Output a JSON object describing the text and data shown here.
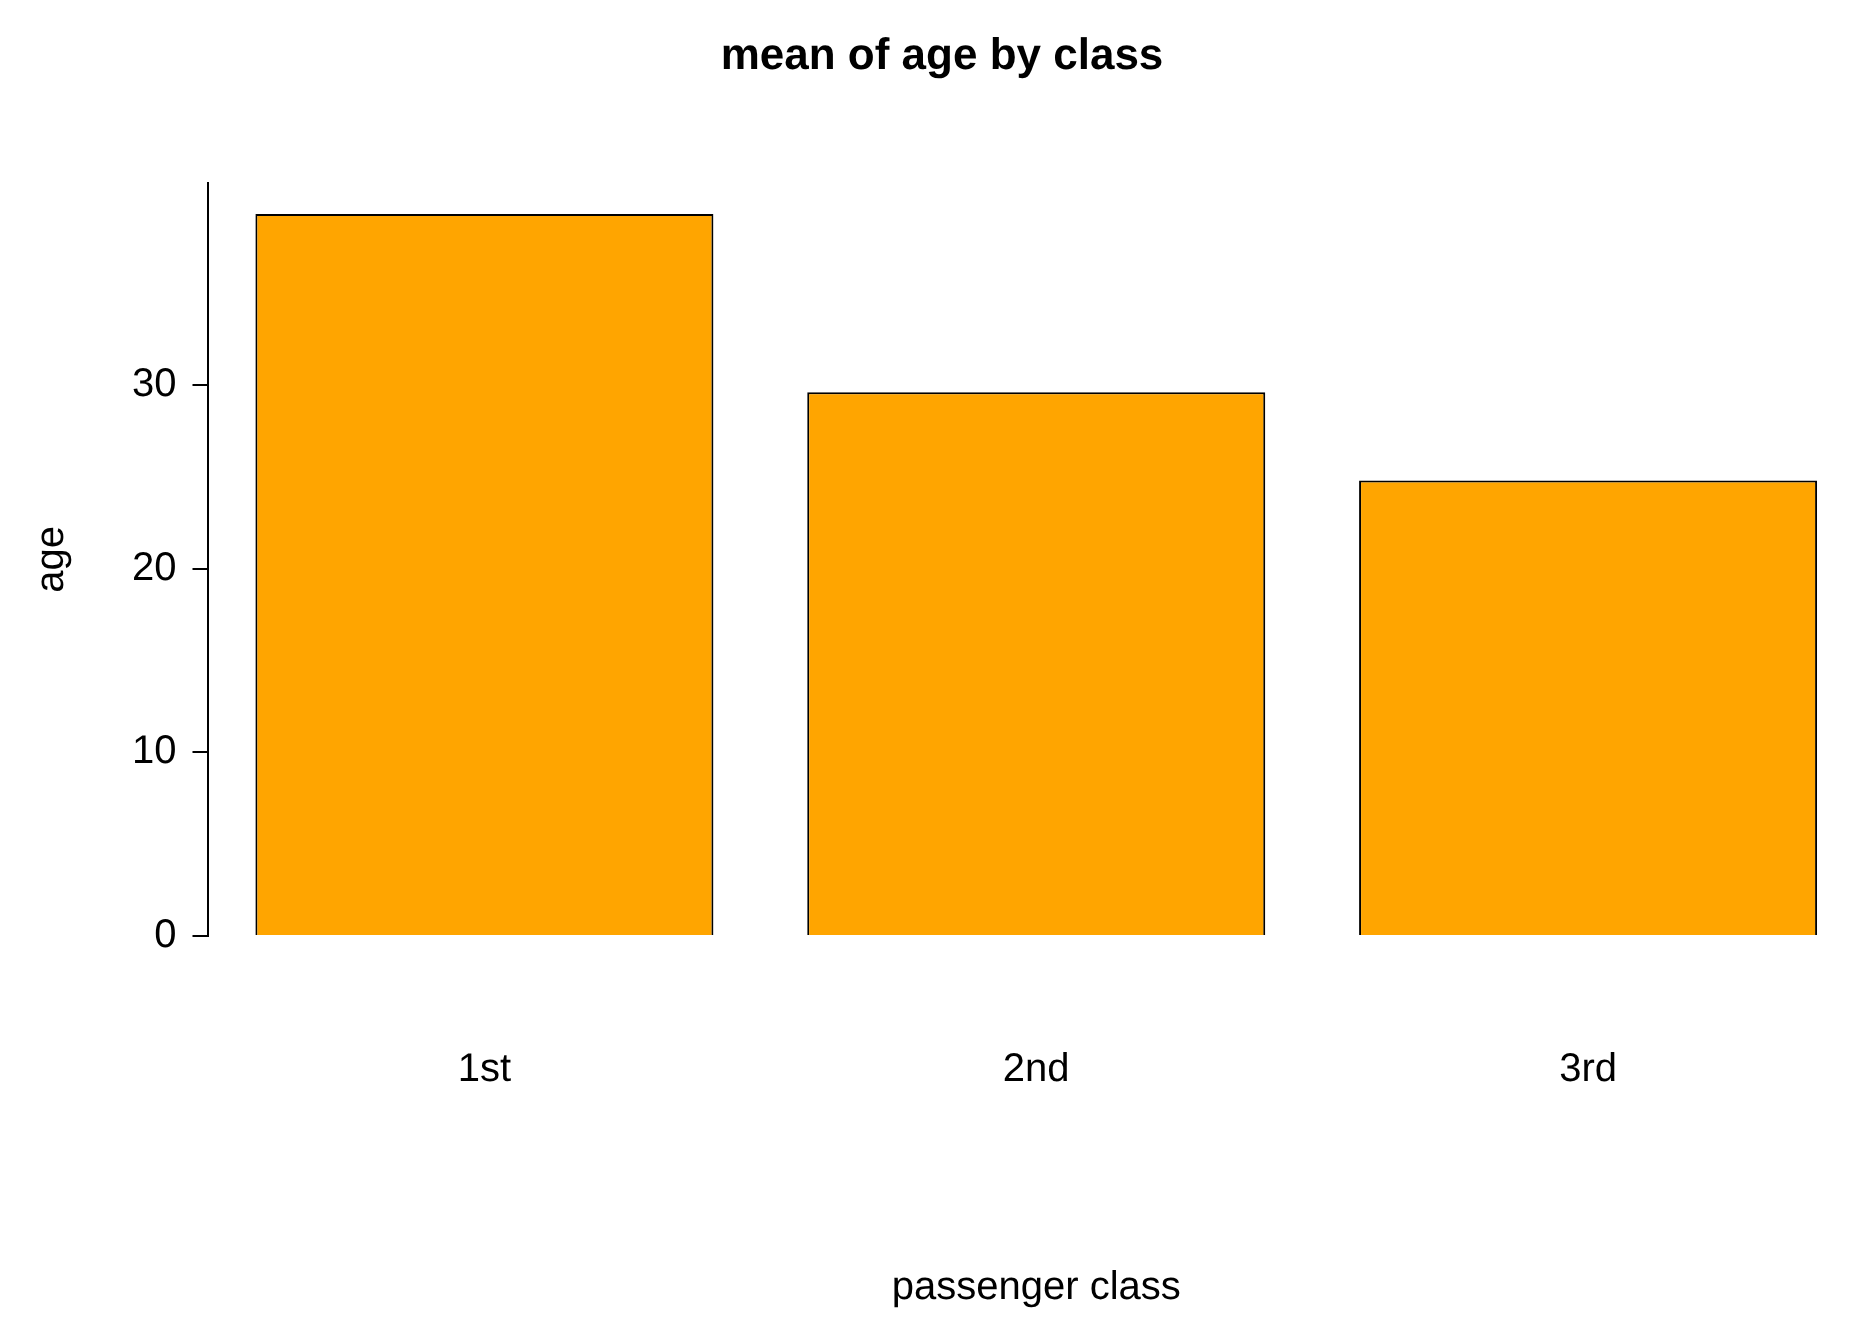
{
  "chart_data": {
    "type": "bar",
    "title": "mean of age by class",
    "xlabel": "passenger class",
    "ylabel": "age",
    "categories": [
      "1st",
      "2nd",
      "3rd"
    ],
    "values": [
      39.3,
      29.6,
      24.8
    ],
    "color": "#ffa500",
    "ylim": [
      0,
      41
    ],
    "yticks": [
      0,
      10,
      20,
      30
    ],
    "grid": false,
    "legend": false
  }
}
